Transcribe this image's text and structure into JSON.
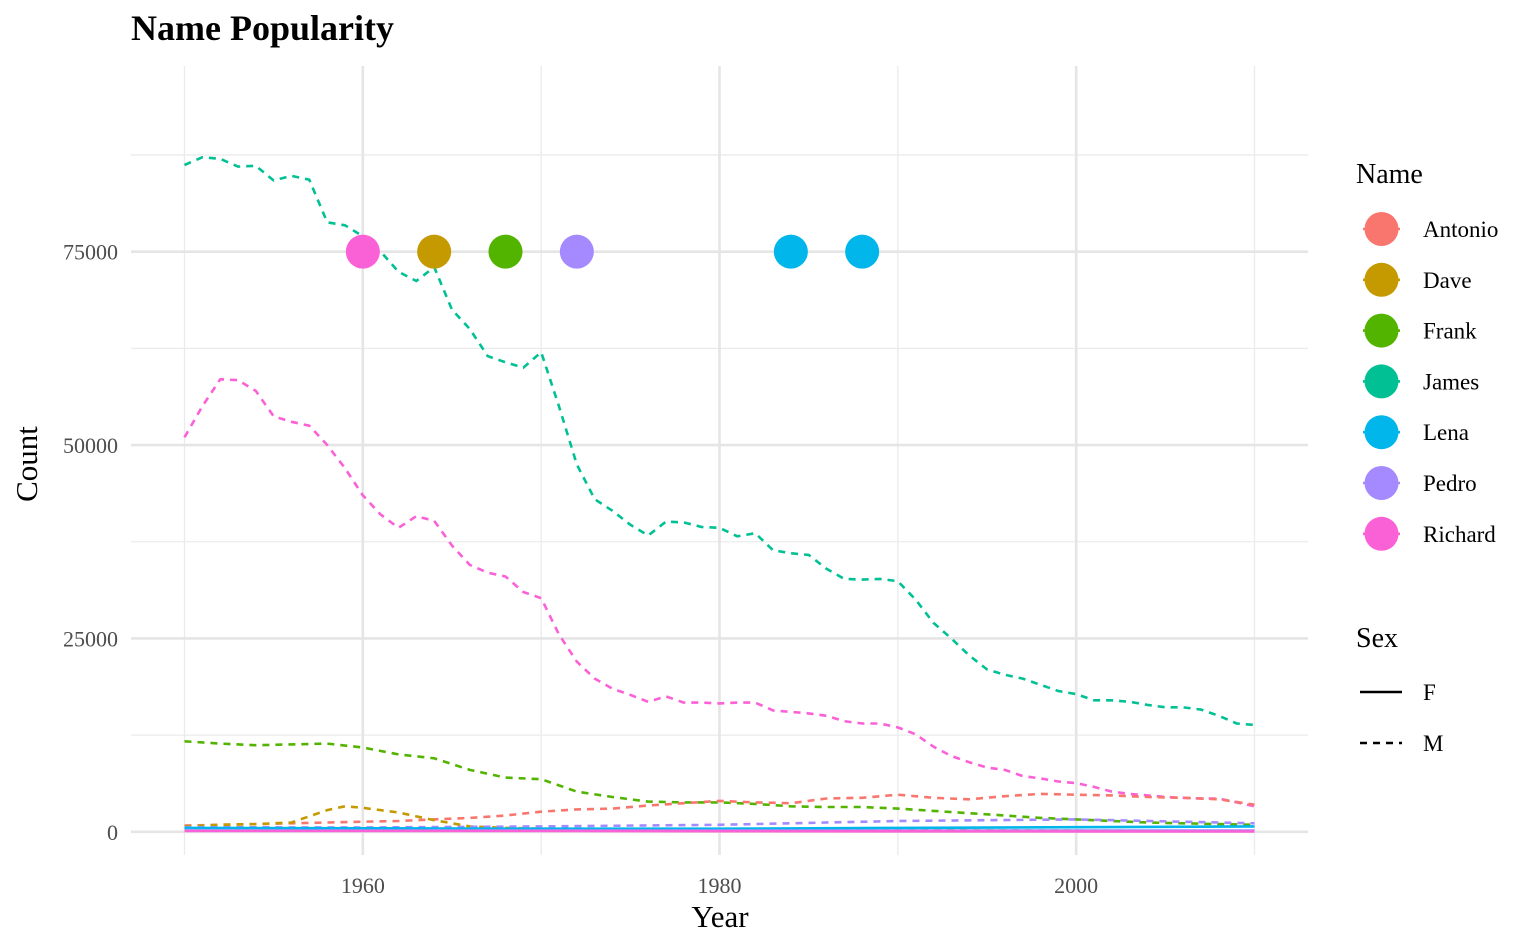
{
  "chart_data": {
    "type": "line",
    "title": "Name Popularity",
    "xlabel": "Year",
    "ylabel": "Count",
    "xlim": [
      1947,
      2013
    ],
    "ylim": [
      -3000,
      99000
    ],
    "x_ticks": [
      1960,
      1980,
      2000
    ],
    "y_ticks": [
      0,
      25000,
      50000,
      75000
    ],
    "x_minor_ticks": [
      1950,
      1970,
      1990,
      2010
    ],
    "y_minor_ticks": [
      12500,
      37500,
      62500,
      87500
    ],
    "grid": true,
    "legend_position": "right",
    "color_legend_title": "Name",
    "linetype_legend_title": "Sex",
    "names": [
      {
        "name": "Antonio",
        "color": "#F8766D"
      },
      {
        "name": "Dave",
        "color": "#C49A00"
      },
      {
        "name": "Frank",
        "color": "#53B400"
      },
      {
        "name": "James",
        "color": "#00C094"
      },
      {
        "name": "Lena",
        "color": "#00B6EB"
      },
      {
        "name": "Pedro",
        "color": "#A58AFF"
      },
      {
        "name": "Richard",
        "color": "#FB61D7"
      }
    ],
    "sexes": [
      {
        "sex": "F",
        "dash": "solid"
      },
      {
        "sex": "M",
        "dash": "dashed"
      }
    ],
    "points": [
      {
        "name": "Richard",
        "x": 1960,
        "y": 75000
      },
      {
        "name": "Dave",
        "x": 1964,
        "y": 75000
      },
      {
        "name": "Frank",
        "x": 1968,
        "y": 75000
      },
      {
        "name": "Pedro",
        "x": 1972,
        "y": 75000
      },
      {
        "name": "Lena",
        "x": 1984,
        "y": 75000
      },
      {
        "name": "Lena",
        "x": 1988,
        "y": 75000
      }
    ],
    "series": [
      {
        "name": "James",
        "sex": "M",
        "x": [
          1950,
          1951,
          1952,
          1953,
          1954,
          1955,
          1956,
          1957,
          1958,
          1959,
          1960,
          1961,
          1962,
          1963,
          1964,
          1965,
          1966,
          1967,
          1968,
          1969,
          1970,
          1971,
          1972,
          1973,
          1974,
          1975,
          1976,
          1977,
          1978,
          1979,
          1980,
          1981,
          1982,
          1983,
          1984,
          1985,
          1986,
          1987,
          1988,
          1989,
          1990,
          1991,
          1992,
          1993,
          1994,
          1995,
          1996,
          1997,
          1998,
          1999,
          2000,
          2001,
          2002,
          2003,
          2004,
          2005,
          2006,
          2007,
          2008,
          2009,
          2010
        ],
        "y": [
          86200,
          87200,
          87000,
          86000,
          86100,
          84200,
          84800,
          84300,
          78800,
          78400,
          77000,
          75000,
          72400,
          71200,
          73000,
          67500,
          65000,
          61500,
          60700,
          60000,
          62000,
          55000,
          47500,
          43000,
          41500,
          39700,
          38300,
          40100,
          40000,
          39400,
          39300,
          38200,
          38600,
          36400,
          36000,
          35800,
          34000,
          32700,
          32600,
          32700,
          32400,
          30000,
          27000,
          25000,
          22800,
          21000,
          20300,
          19800,
          19000,
          18200,
          17800,
          17000,
          17000,
          16800,
          16400,
          16100,
          16100,
          15800,
          15000,
          14000,
          13800
        ]
      },
      {
        "name": "Richard",
        "sex": "M",
        "x": [
          1950,
          1951,
          1952,
          1953,
          1954,
          1955,
          1956,
          1957,
          1958,
          1959,
          1960,
          1961,
          1962,
          1963,
          1964,
          1965,
          1966,
          1967,
          1968,
          1969,
          1970,
          1971,
          1972,
          1973,
          1974,
          1975,
          1976,
          1977,
          1978,
          1979,
          1980,
          1981,
          1982,
          1983,
          1984,
          1985,
          1986,
          1987,
          1988,
          1989,
          1990,
          1991,
          1992,
          1993,
          1994,
          1995,
          1996,
          1997,
          1998,
          1999,
          2000,
          2001,
          2002,
          2003,
          2004,
          2005,
          2006,
          2007,
          2008,
          2009,
          2010
        ],
        "y": [
          51000,
          55000,
          58500,
          58400,
          57000,
          53700,
          53000,
          52500,
          50000,
          47000,
          43500,
          41000,
          39300,
          40800,
          40200,
          37000,
          34500,
          33500,
          33000,
          31000,
          30200,
          25500,
          22000,
          19800,
          18500,
          17700,
          16800,
          17500,
          16700,
          16700,
          16600,
          16700,
          16700,
          15700,
          15500,
          15300,
          15000,
          14300,
          14000,
          14000,
          13500,
          12600,
          11000,
          9800,
          9000,
          8300,
          8000,
          7200,
          6900,
          6500,
          6300,
          5800,
          5200,
          4900,
          4700,
          4500,
          4400,
          4300,
          4300,
          3800,
          3300
        ]
      },
      {
        "name": "Frank",
        "sex": "M",
        "x": [
          1950,
          1952,
          1954,
          1956,
          1958,
          1960,
          1962,
          1964,
          1966,
          1968,
          1970,
          1972,
          1974,
          1976,
          1978,
          1980,
          1982,
          1984,
          1986,
          1988,
          1990,
          1992,
          1994,
          1996,
          1998,
          2000,
          2002,
          2004,
          2006,
          2008,
          2010
        ],
        "y": [
          11700,
          11400,
          11200,
          11300,
          11400,
          10900,
          10000,
          9500,
          8000,
          7000,
          6800,
          5200,
          4500,
          3900,
          3800,
          3800,
          3600,
          3300,
          3200,
          3200,
          3000,
          2700,
          2400,
          2100,
          1800,
          1600,
          1400,
          1200,
          1100,
          1000,
          900
        ]
      },
      {
        "name": "Antonio",
        "sex": "M",
        "x": [
          1950,
          1952,
          1954,
          1956,
          1958,
          1960,
          1962,
          1964,
          1966,
          1968,
          1970,
          1972,
          1974,
          1976,
          1978,
          1980,
          1982,
          1984,
          1986,
          1988,
          1990,
          1992,
          1994,
          1996,
          1998,
          2000,
          2002,
          2004,
          2006,
          2008,
          2010
        ],
        "y": [
          800,
          900,
          1000,
          1100,
          1200,
          1300,
          1400,
          1600,
          1800,
          2100,
          2600,
          2900,
          3000,
          3400,
          3700,
          4000,
          3800,
          3700,
          4300,
          4400,
          4800,
          4400,
          4200,
          4600,
          4900,
          4800,
          4700,
          4500,
          4400,
          4200,
          3500
        ]
      },
      {
        "name": "Dave",
        "sex": "M",
        "x": [
          1950,
          1952,
          1954,
          1956,
          1958,
          1959,
          1960,
          1962,
          1964,
          1966,
          1968,
          1970,
          1975,
          1980,
          1990,
          2000,
          2010
        ],
        "y": [
          700,
          900,
          1000,
          1200,
          2800,
          3300,
          3100,
          2500,
          1500,
          700,
          500,
          400,
          300,
          250,
          200,
          150,
          100
        ]
      },
      {
        "name": "Pedro",
        "sex": "M",
        "x": [
          1950,
          1960,
          1970,
          1980,
          1990,
          2000,
          2010
        ],
        "y": [
          600,
          550,
          700,
          900,
          1400,
          1600,
          1100
        ]
      },
      {
        "name": "Lena",
        "sex": "F",
        "x": [
          1950,
          1960,
          1970,
          1980,
          1990,
          2000,
          2010
        ],
        "y": [
          500,
          450,
          400,
          400,
          500,
          600,
          700
        ]
      },
      {
        "name": "Pedro",
        "sex": "F",
        "x": [
          1950,
          1960,
          1970,
          1980,
          1990,
          2000,
          2010
        ],
        "y": [
          150,
          150,
          150,
          150,
          150,
          150,
          150
        ]
      },
      {
        "name": "Richard",
        "sex": "F",
        "x": [
          1950,
          1960,
          1970,
          1980,
          1990,
          2000,
          2010
        ],
        "y": [
          100,
          100,
          100,
          80,
          60,
          50,
          40
        ]
      }
    ]
  }
}
